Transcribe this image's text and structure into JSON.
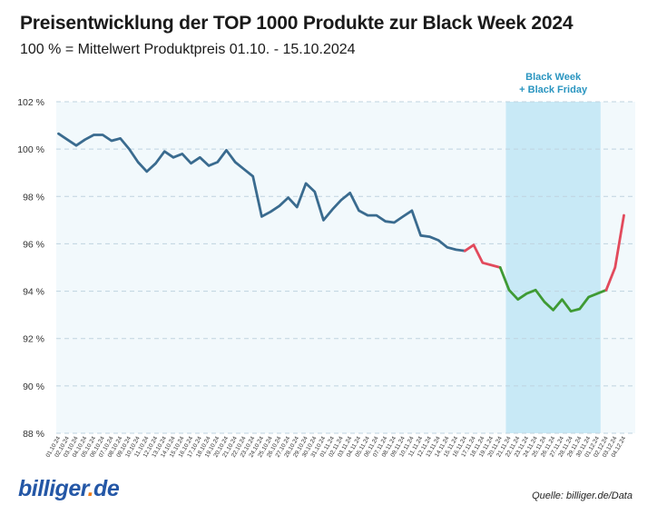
{
  "header": {
    "title": "Preisentwicklung der TOP 1000 Produkte zur Black Week 2024",
    "subtitle": "100 % = Mittelwert Produktpreis 01.10. - 15.10.2024"
  },
  "footer": {
    "logo_part1": "billiger",
    "logo_part2": ".",
    "logo_part3": "de",
    "source": "Quelle: billiger.de/Data"
  },
  "chart_data": {
    "type": "line",
    "title": "Preisentwicklung der TOP 1000 Produkte zur Black Week 2024",
    "subtitle": "100 % = Mittelwert Produktpreis 01.10. - 15.10.2024",
    "xlabel": "",
    "ylabel": "",
    "ylim": [
      88,
      102
    ],
    "y_ticks": [
      88,
      90,
      92,
      94,
      96,
      98,
      100,
      102
    ],
    "y_tick_labels": [
      "88 %",
      "90 %",
      "92 %",
      "94 %",
      "96 %",
      "98 %",
      "100 %",
      "102 %"
    ],
    "grid": true,
    "categories": [
      "01.10.24",
      "02.10.24",
      "03.10.24",
      "04.10.24",
      "05.10.24",
      "06.10.24",
      "07.10.24",
      "08.10.24",
      "09.10.24",
      "10.10.24",
      "11.10.24",
      "12.10.24",
      "13.10.24",
      "14.10.24",
      "15.10.24",
      "16.10.24",
      "17.10.24",
      "18.10.24",
      "19.10.24",
      "20.10.24",
      "21.10.24",
      "22.10.24",
      "23.10.24",
      "24.10.24",
      "25.10.24",
      "26.10.24",
      "27.10.24",
      "28.10.24",
      "29.10.24",
      "30.10.24",
      "31.10.24",
      "01.11.24",
      "02.11.24",
      "03.11.24",
      "04.11.24",
      "05.11.24",
      "06.11.24",
      "07.11.24",
      "08.11.24",
      "09.11.24",
      "10.11.24",
      "11.11.24",
      "12.11.24",
      "13.11.24",
      "14.11.24",
      "15.11.24",
      "16.11.24",
      "17.11.24",
      "18.11.24",
      "19.11.24",
      "20.11.24",
      "21.11.24",
      "22.11.24",
      "23.11.24",
      "24.11.24",
      "25.11.24",
      "26.11.24",
      "27.11.24",
      "28.11.24",
      "29.11.24",
      "30.11.24",
      "01.12.24",
      "02.12.24",
      "03.12.24",
      "04.12.24"
    ],
    "values": [
      100.65,
      100.4,
      100.15,
      100.4,
      100.6,
      100.6,
      100.35,
      100.45,
      100.0,
      99.45,
      99.05,
      99.4,
      99.9,
      99.65,
      99.8,
      99.4,
      99.65,
      99.3,
      99.45,
      99.95,
      99.45,
      99.15,
      98.85,
      97.15,
      97.35,
      97.6,
      97.95,
      97.55,
      98.55,
      98.2,
      97.0,
      97.45,
      97.85,
      98.15,
      97.4,
      97.2,
      97.2,
      96.95,
      96.9,
      97.15,
      97.4,
      96.35,
      96.3,
      96.15,
      95.85,
      95.75,
      95.7,
      95.95,
      95.2,
      95.1,
      95.0,
      94.05,
      93.65,
      93.9,
      94.05,
      93.55,
      93.2,
      93.65,
      93.15,
      93.25,
      93.75,
      93.9,
      94.05,
      95.0,
      97.2
    ],
    "segments": [
      {
        "type": "normal",
        "from": 0,
        "to": 46,
        "color": "#3a6b8f"
      },
      {
        "type": "price-increase",
        "from": 46,
        "to": 50,
        "color": "#e24a5c"
      },
      {
        "type": "black-week",
        "from": 50,
        "to": 62,
        "color": "#3f9a34"
      },
      {
        "type": "price-increase",
        "from": 62,
        "to": 64,
        "color": "#e24a5c"
      }
    ],
    "highlight": {
      "label_line1": "Black Week",
      "label_line2": "+ Black Friday",
      "from": 51,
      "to": 61,
      "color": "#c8e9f6",
      "label_color": "#2a95c0"
    }
  }
}
